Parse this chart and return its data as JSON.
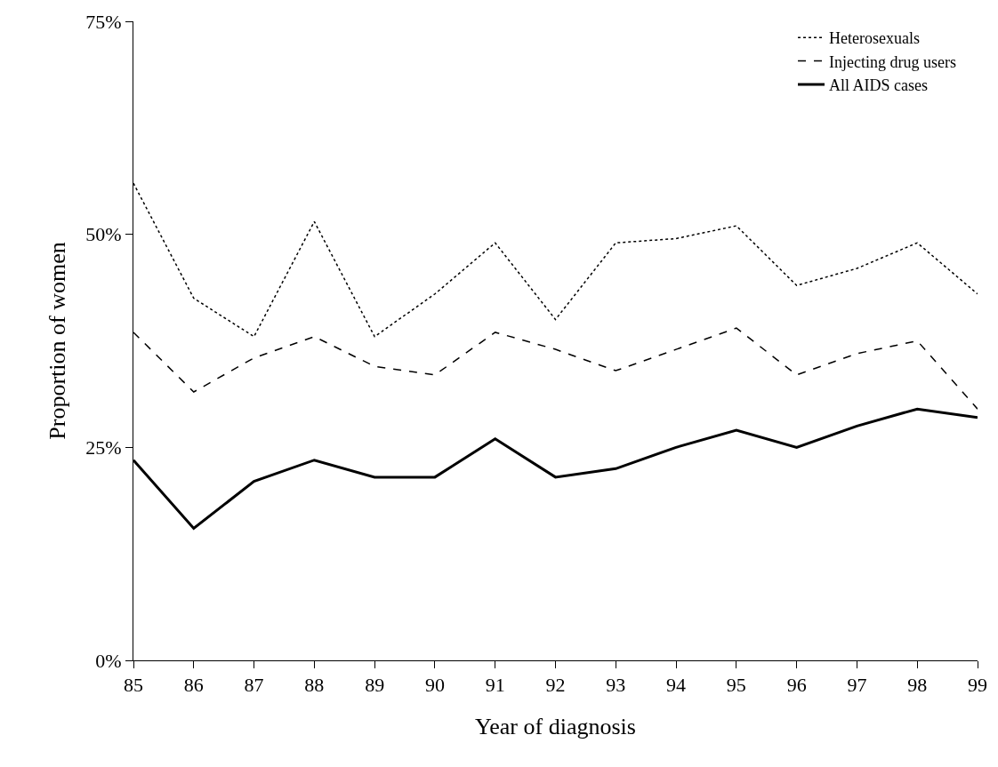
{
  "chart_data": {
    "type": "line",
    "xlabel": "Year of diagnosis",
    "ylabel": "Proportion of women",
    "x": [
      85,
      86,
      87,
      88,
      89,
      90,
      91,
      92,
      93,
      94,
      95,
      96,
      97,
      98,
      99
    ],
    "series": [
      {
        "name": "Heterosexuals",
        "color": "#000000",
        "line_style": "dotted",
        "values": [
          56,
          42.5,
          38,
          51.5,
          38,
          43,
          49,
          40,
          49,
          49.5,
          51,
          44,
          46,
          49,
          43
        ]
      },
      {
        "name": "Injecting drug users",
        "color": "#000000",
        "line_style": "dashed",
        "values": [
          38.5,
          31.5,
          35.5,
          38,
          34.5,
          33.5,
          38.5,
          36.5,
          34,
          36.5,
          39,
          33.5,
          36,
          37.5,
          29.5
        ]
      },
      {
        "name": "All AIDS cases",
        "color": "#000000",
        "line_style": "solid",
        "values": [
          23.5,
          15.5,
          21,
          23.5,
          21.5,
          21.5,
          26,
          21.5,
          22.5,
          25,
          27,
          25,
          27.5,
          29.5,
          28.5
        ]
      }
    ],
    "xlim": [
      85,
      99
    ],
    "xticks": [
      85,
      86,
      87,
      88,
      89,
      90,
      91,
      92,
      93,
      94,
      95,
      96,
      97,
      98,
      99
    ],
    "ylim": [
      0,
      75
    ],
    "yticks": [
      {
        "value": 0,
        "label": "0%"
      },
      {
        "value": 25,
        "label": "25%"
      },
      {
        "value": 50,
        "label": "50%"
      },
      {
        "value": 75,
        "label": "75%"
      }
    ],
    "grid": false,
    "legend": "top right",
    "marker": "none"
  }
}
